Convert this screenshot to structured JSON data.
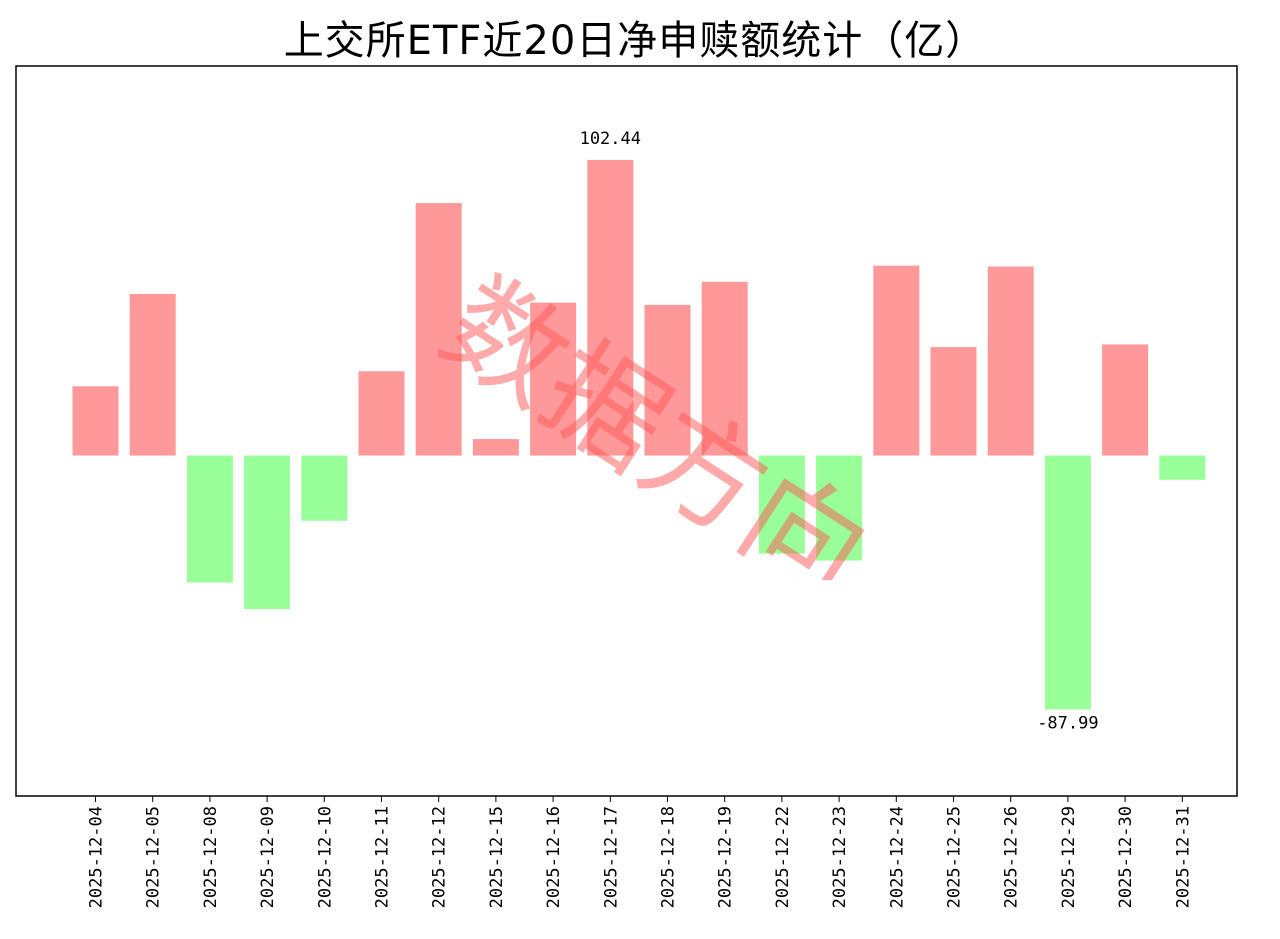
{
  "chart_data": {
    "type": "bar",
    "title": "上交所ETF近20日净申赎额统计（亿）",
    "xlabel": "",
    "ylabel": "",
    "categories": [
      "2025-12-04",
      "2025-12-05",
      "2025-12-08",
      "2025-12-09",
      "2025-12-10",
      "2025-12-11",
      "2025-12-12",
      "2025-12-15",
      "2025-12-16",
      "2025-12-17",
      "2025-12-18",
      "2025-12-19",
      "2025-12-22",
      "2025-12-23",
      "2025-12-24",
      "2025-12-25",
      "2025-12-26",
      "2025-12-29",
      "2025-12-30",
      "2025-12-31"
    ],
    "values": [
      24.0,
      56.0,
      -44.0,
      -53.2,
      -22.6,
      29.2,
      87.5,
      5.7,
      53.0,
      102.44,
      52.2,
      60.2,
      -34.0,
      -36.4,
      65.8,
      37.6,
      65.5,
      -87.99,
      38.5,
      -8.4
    ],
    "labeled_values": [
      {
        "category": "2025-12-17",
        "text": "102.44"
      },
      {
        "category": "2025-12-29",
        "text": "-87.99"
      }
    ],
    "ylim": [
      -118,
      135
    ],
    "grid": false,
    "legend": "none",
    "colors": {
      "positive": "#ff9999",
      "negative": "#99ff99"
    }
  },
  "watermark": {
    "text": "数据方向",
    "color": "#ff5555"
  }
}
